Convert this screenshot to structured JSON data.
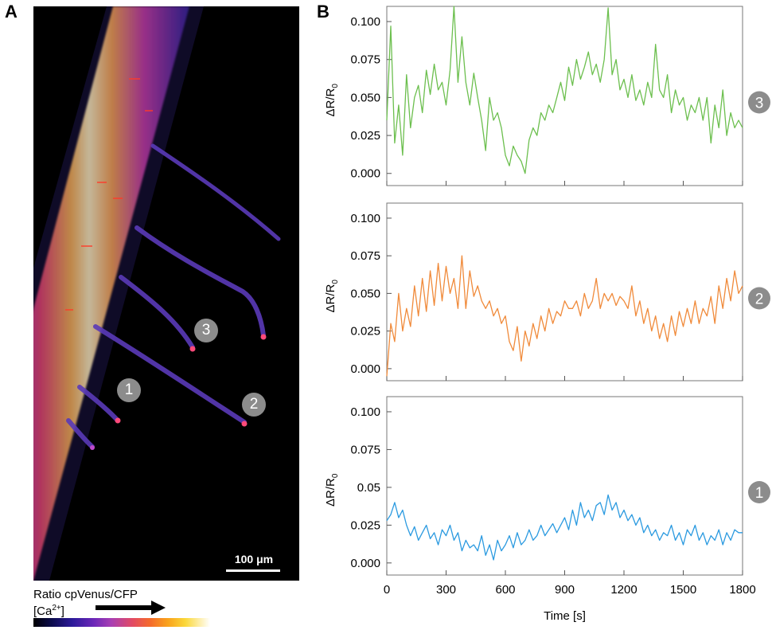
{
  "panel_a": {
    "letter": "A",
    "roi_labels": [
      "1",
      "2",
      "3"
    ],
    "scalebar_label": "100 μm",
    "colorbar": {
      "title": "Ratio cpVenus/CFP",
      "ion_prefix": "[Ca",
      "ion_superscript": "2+",
      "ion_suffix": "]"
    }
  },
  "panel_b": {
    "letter": "B",
    "xlabel": "Time [s]",
    "ylabel_main": "ΔR/R",
    "ylabel_sub": "0"
  },
  "colors": {
    "trace_3": "#6cbf4e",
    "trace_2": "#f08a3a",
    "trace_1": "#2b9ae0",
    "badge": "#8c8c8c"
  },
  "chart_data": [
    {
      "type": "line",
      "roi": "3",
      "color": "#6cbf4e",
      "xlim": [
        0,
        1800
      ],
      "ylim": [
        -0.008,
        0.11
      ],
      "xticks": [
        0,
        300,
        600,
        900,
        1200,
        1500,
        1800
      ],
      "yticks": [
        "0.000",
        "0.025",
        "0.050",
        "0.075",
        "0.100"
      ],
      "x": [
        0,
        20,
        40,
        60,
        80,
        100,
        120,
        140,
        160,
        180,
        200,
        220,
        240,
        260,
        280,
        300,
        320,
        340,
        360,
        380,
        400,
        420,
        440,
        460,
        480,
        500,
        520,
        540,
        560,
        580,
        600,
        620,
        640,
        660,
        680,
        700,
        720,
        740,
        760,
        780,
        800,
        820,
        840,
        860,
        880,
        900,
        920,
        940,
        960,
        980,
        1000,
        1020,
        1040,
        1060,
        1080,
        1100,
        1120,
        1140,
        1160,
        1180,
        1200,
        1220,
        1240,
        1260,
        1280,
        1300,
        1320,
        1340,
        1360,
        1380,
        1400,
        1420,
        1440,
        1460,
        1480,
        1500,
        1520,
        1540,
        1560,
        1580,
        1600,
        1620,
        1640,
        1660,
        1680,
        1700,
        1720,
        1740,
        1760,
        1780,
        1800
      ],
      "values": [
        0.035,
        0.097,
        0.02,
        0.045,
        0.012,
        0.065,
        0.03,
        0.05,
        0.058,
        0.04,
        0.068,
        0.052,
        0.072,
        0.055,
        0.06,
        0.045,
        0.068,
        0.11,
        0.06,
        0.09,
        0.06,
        0.045,
        0.066,
        0.05,
        0.035,
        0.015,
        0.05,
        0.035,
        0.04,
        0.03,
        0.012,
        0.005,
        0.018,
        0.012,
        0.008,
        0.0,
        0.022,
        0.03,
        0.025,
        0.04,
        0.035,
        0.045,
        0.04,
        0.05,
        0.06,
        0.048,
        0.07,
        0.058,
        0.075,
        0.062,
        0.07,
        0.08,
        0.065,
        0.072,
        0.06,
        0.075,
        0.109,
        0.065,
        0.075,
        0.055,
        0.062,
        0.05,
        0.065,
        0.048,
        0.055,
        0.045,
        0.06,
        0.05,
        0.085,
        0.055,
        0.05,
        0.065,
        0.04,
        0.055,
        0.045,
        0.05,
        0.035,
        0.045,
        0.04,
        0.05,
        0.035,
        0.05,
        0.02,
        0.045,
        0.03,
        0.055,
        0.025,
        0.04,
        0.03,
        0.035,
        0.03
      ]
    },
    {
      "type": "line",
      "roi": "2",
      "color": "#f08a3a",
      "xlim": [
        0,
        1800
      ],
      "ylim": [
        -0.008,
        0.11
      ],
      "xticks": [
        0,
        300,
        600,
        900,
        1200,
        1500,
        1800
      ],
      "yticks": [
        "0.000",
        "0.025",
        "0.050",
        "0.075",
        "0.100"
      ],
      "x": [
        0,
        20,
        40,
        60,
        80,
        100,
        120,
        140,
        160,
        180,
        200,
        220,
        240,
        260,
        280,
        300,
        320,
        340,
        360,
        380,
        400,
        420,
        440,
        460,
        480,
        500,
        520,
        540,
        560,
        580,
        600,
        620,
        640,
        660,
        680,
        700,
        720,
        740,
        760,
        780,
        800,
        820,
        840,
        860,
        880,
        900,
        920,
        940,
        960,
        980,
        1000,
        1020,
        1040,
        1060,
        1080,
        1100,
        1120,
        1140,
        1160,
        1180,
        1200,
        1220,
        1240,
        1260,
        1280,
        1300,
        1320,
        1340,
        1360,
        1380,
        1400,
        1420,
        1440,
        1460,
        1480,
        1500,
        1520,
        1540,
        1560,
        1580,
        1600,
        1620,
        1640,
        1660,
        1680,
        1700,
        1720,
        1740,
        1760,
        1780,
        1800
      ],
      "values": [
        -0.005,
        0.03,
        0.018,
        0.05,
        0.025,
        0.04,
        0.028,
        0.055,
        0.035,
        0.06,
        0.038,
        0.065,
        0.042,
        0.07,
        0.045,
        0.068,
        0.05,
        0.06,
        0.04,
        0.075,
        0.04,
        0.065,
        0.048,
        0.055,
        0.045,
        0.04,
        0.045,
        0.035,
        0.04,
        0.03,
        0.035,
        0.018,
        0.012,
        0.028,
        0.005,
        0.025,
        0.015,
        0.03,
        0.02,
        0.035,
        0.025,
        0.04,
        0.03,
        0.038,
        0.035,
        0.045,
        0.04,
        0.04,
        0.045,
        0.035,
        0.05,
        0.04,
        0.045,
        0.06,
        0.04,
        0.05,
        0.045,
        0.05,
        0.042,
        0.048,
        0.045,
        0.04,
        0.055,
        0.035,
        0.045,
        0.03,
        0.04,
        0.025,
        0.035,
        0.02,
        0.03,
        0.018,
        0.035,
        0.022,
        0.038,
        0.028,
        0.04,
        0.03,
        0.045,
        0.03,
        0.04,
        0.035,
        0.048,
        0.03,
        0.055,
        0.04,
        0.06,
        0.045,
        0.065,
        0.05,
        0.055
      ]
    },
    {
      "type": "line",
      "roi": "1",
      "color": "#2b9ae0",
      "xlim": [
        0,
        1800
      ],
      "ylim": [
        -0.008,
        0.11
      ],
      "xticks": [
        0,
        300,
        600,
        900,
        1200,
        1500,
        1800
      ],
      "yticks": [
        "0.000",
        "0.025",
        "0.05",
        "0.075",
        "0.100"
      ],
      "x": [
        0,
        20,
        40,
        60,
        80,
        100,
        120,
        140,
        160,
        180,
        200,
        220,
        240,
        260,
        280,
        300,
        320,
        340,
        360,
        380,
        400,
        420,
        440,
        460,
        480,
        500,
        520,
        540,
        560,
        580,
        600,
        620,
        640,
        660,
        680,
        700,
        720,
        740,
        760,
        780,
        800,
        820,
        840,
        860,
        880,
        900,
        920,
        940,
        960,
        980,
        1000,
        1020,
        1040,
        1060,
        1080,
        1100,
        1120,
        1140,
        1160,
        1180,
        1200,
        1220,
        1240,
        1260,
        1280,
        1300,
        1320,
        1340,
        1360,
        1380,
        1400,
        1420,
        1440,
        1460,
        1480,
        1500,
        1520,
        1540,
        1560,
        1580,
        1600,
        1620,
        1640,
        1660,
        1680,
        1700,
        1720,
        1740,
        1760,
        1780,
        1800
      ],
      "values": [
        0.028,
        0.032,
        0.04,
        0.03,
        0.035,
        0.025,
        0.018,
        0.024,
        0.015,
        0.02,
        0.025,
        0.016,
        0.02,
        0.012,
        0.022,
        0.018,
        0.025,
        0.015,
        0.02,
        0.008,
        0.015,
        0.01,
        0.012,
        0.008,
        0.018,
        0.005,
        0.012,
        0.002,
        0.015,
        0.008,
        0.012,
        0.018,
        0.01,
        0.02,
        0.012,
        0.015,
        0.022,
        0.015,
        0.018,
        0.025,
        0.018,
        0.022,
        0.026,
        0.02,
        0.025,
        0.03,
        0.022,
        0.035,
        0.025,
        0.04,
        0.03,
        0.035,
        0.028,
        0.038,
        0.04,
        0.032,
        0.045,
        0.035,
        0.04,
        0.03,
        0.035,
        0.028,
        0.032,
        0.025,
        0.03,
        0.02,
        0.025,
        0.018,
        0.022,
        0.015,
        0.02,
        0.018,
        0.025,
        0.015,
        0.02,
        0.012,
        0.022,
        0.018,
        0.025,
        0.015,
        0.02,
        0.012,
        0.018,
        0.015,
        0.022,
        0.012,
        0.02,
        0.015,
        0.022,
        0.02,
        0.02
      ]
    }
  ]
}
